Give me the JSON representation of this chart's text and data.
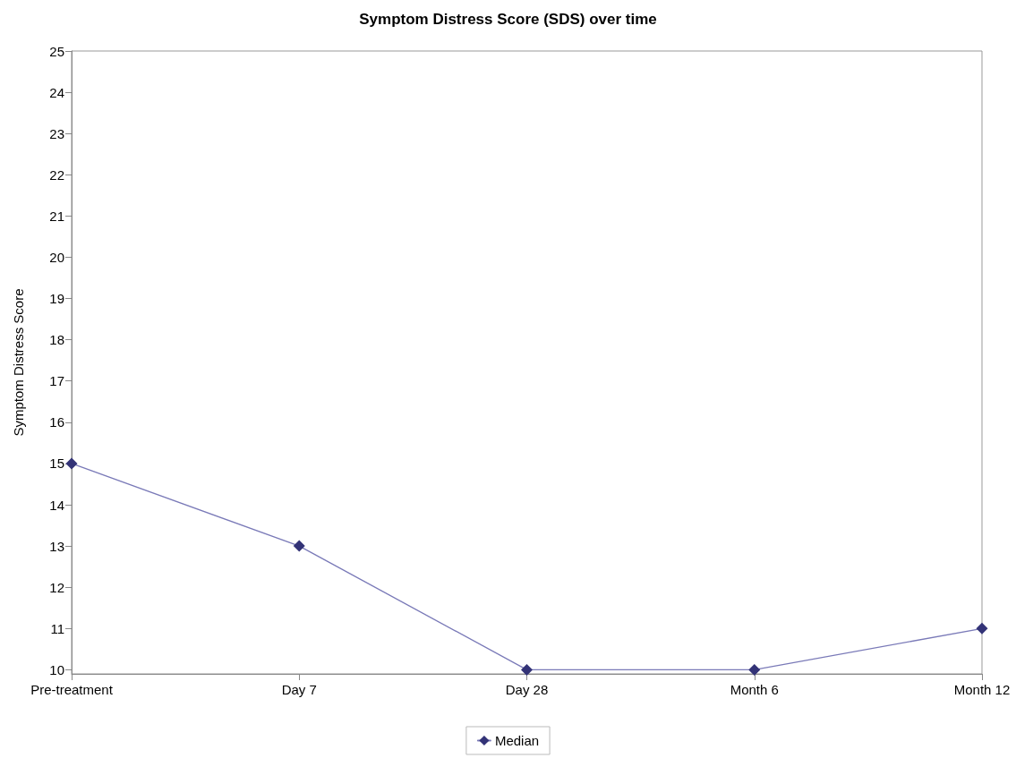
{
  "chart_data": {
    "type": "line",
    "title": "Symptom Distress Score (SDS) over time",
    "ylabel": "Symptom Distress Score",
    "categories": [
      "Pre-treatment",
      "Day 7",
      "Day 28",
      "Month 6",
      "Month 12"
    ],
    "series": [
      {
        "name": "Median",
        "color": "#333377",
        "values": [
          15,
          13,
          10,
          10,
          11
        ]
      }
    ],
    "ylim": [
      9.9,
      25
    ],
    "yticks": [
      10,
      11,
      12,
      13,
      14,
      15,
      16,
      17,
      18,
      19,
      20,
      21,
      22,
      23,
      24,
      25
    ],
    "grid": false,
    "legend": "bottom",
    "marker": "diamond",
    "line_style": "solid"
  }
}
